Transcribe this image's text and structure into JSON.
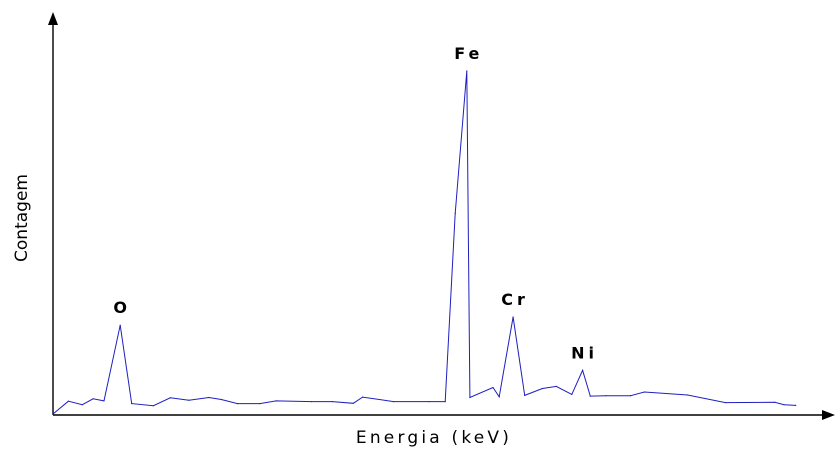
{
  "chart_data": {
    "type": "line",
    "title": "",
    "xlabel": "Energia (keV)",
    "ylabel": "Contagem",
    "grid": false,
    "legend": "none",
    "xlim": [
      0,
      100
    ],
    "ylim": [
      0,
      100
    ],
    "colors": {
      "series": "#1f1fbf",
      "axes": "#000000"
    },
    "series": [
      {
        "values": [
          [
            0,
            0.3
          ],
          [
            2.0,
            4.0
          ],
          [
            3.8,
            3.0
          ],
          [
            5.2,
            4.7
          ],
          [
            6.6,
            4.1
          ],
          [
            8.7,
            26.1
          ],
          [
            10.2,
            3.3
          ],
          [
            13.0,
            2.7
          ],
          [
            15.2,
            5.0
          ],
          [
            17.6,
            4.3
          ],
          [
            20.2,
            5.1
          ],
          [
            21.8,
            4.5
          ],
          [
            23.9,
            3.3
          ],
          [
            26.8,
            3.3
          ],
          [
            28.9,
            4.1
          ],
          [
            33.5,
            3.9
          ],
          [
            36.2,
            3.9
          ],
          [
            38.9,
            3.4
          ],
          [
            40.1,
            5.2
          ],
          [
            44.1,
            3.9
          ],
          [
            48.7,
            3.9
          ],
          [
            50.8,
            3.9
          ],
          [
            52.1,
            58.6
          ],
          [
            53.6,
            100.0
          ],
          [
            54.0,
            5.1
          ],
          [
            57.0,
            8.0
          ],
          [
            57.8,
            5.3
          ],
          [
            59.6,
            28.5
          ],
          [
            61.1,
            5.7
          ],
          [
            63.4,
            7.7
          ],
          [
            65.2,
            8.3
          ],
          [
            67.2,
            6.0
          ],
          [
            68.6,
            13.0
          ],
          [
            69.6,
            5.5
          ],
          [
            71.6,
            5.6
          ],
          [
            74.8,
            5.6
          ],
          [
            76.6,
            6.7
          ],
          [
            82.2,
            5.8
          ],
          [
            87.1,
            3.6
          ],
          [
            93.5,
            3.7
          ],
          [
            94.7,
            3.0
          ],
          [
            96.2,
            2.8
          ]
        ]
      }
    ],
    "peaks": [
      {
        "label": "O",
        "x": 8.7,
        "y": 26.1
      },
      {
        "label": "Fe",
        "x": 53.6,
        "y": 100.0
      },
      {
        "label": "Cr",
        "x": 59.6,
        "y": 28.5
      },
      {
        "label": "Ni",
        "x": 68.6,
        "y": 13.0
      }
    ]
  }
}
